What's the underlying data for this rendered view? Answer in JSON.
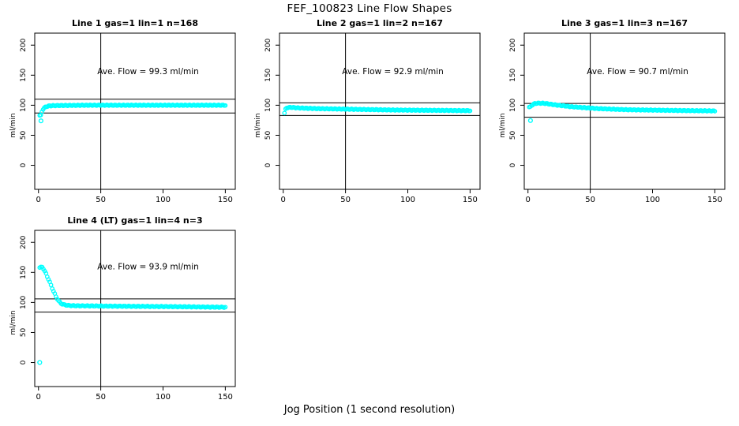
{
  "figure": {
    "title": "FEF_100823  Line Flow Shapes",
    "xlabel": "Jog Position (1 second resolution)",
    "point_color": "#00ffff",
    "line_color": "#000000",
    "background": "#ffffff"
  },
  "chart_data": [
    {
      "type": "scatter",
      "title": "Line 1 gas=1 lin=1 n=168",
      "line": 1,
      "gas": 1,
      "lin": 1,
      "n": 168,
      "annotation": "Ave. Flow =  99.3  ml/min",
      "ave_flow_ml_min": 99.3,
      "ylabel": "ml/min",
      "xticks": [
        0,
        50,
        100,
        150
      ],
      "yticks": [
        0,
        50,
        100,
        150,
        200
      ],
      "xlim": [
        -3,
        158
      ],
      "ylim": [
        -40,
        220
      ],
      "vline_x": 50,
      "hlines": [
        110,
        87
      ],
      "annotation_pos": [
        88,
        152
      ],
      "num_points": 167,
      "curve_keypoints": [
        [
          2,
          83
        ],
        [
          3,
          91
        ],
        [
          4,
          94.5
        ],
        [
          6,
          97.5
        ],
        [
          9,
          99
        ],
        [
          15,
          99.5
        ],
        [
          40,
          100
        ],
        [
          100,
          100
        ],
        [
          150,
          100
        ]
      ],
      "outliers": [
        [
          2,
          74
        ]
      ]
    },
    {
      "type": "scatter",
      "title": "Line 2 gas=1 lin=2 n=167",
      "line": 2,
      "gas": 1,
      "lin": 2,
      "n": 167,
      "annotation": "Ave. Flow =  92.9  ml/min",
      "ave_flow_ml_min": 92.9,
      "ylabel": "ml/min",
      "xticks": [
        0,
        50,
        100,
        150
      ],
      "yticks": [
        0,
        50,
        100,
        150,
        200
      ],
      "xlim": [
        -3,
        158
      ],
      "ylim": [
        -40,
        220
      ],
      "vline_x": 50,
      "hlines": [
        104,
        83
      ],
      "annotation_pos": [
        88,
        152
      ],
      "num_points": 167,
      "curve_keypoints": [
        [
          1,
          87
        ],
        [
          2,
          94
        ],
        [
          3,
          96
        ],
        [
          6,
          96.5
        ],
        [
          12,
          95.5
        ],
        [
          25,
          94.5
        ],
        [
          50,
          93.5
        ],
        [
          90,
          92
        ],
        [
          150,
          91
        ]
      ],
      "outliers": []
    },
    {
      "type": "scatter",
      "title": "Line 3 gas=1 lin=3 n=167",
      "line": 3,
      "gas": 1,
      "lin": 3,
      "n": 167,
      "annotation": "Ave. Flow =  90.7  ml/min",
      "ave_flow_ml_min": 90.7,
      "ylabel": "ml/min",
      "xticks": [
        0,
        50,
        100,
        150
      ],
      "yticks": [
        0,
        50,
        100,
        150,
        200
      ],
      "xlim": [
        -3,
        158
      ],
      "ylim": [
        -40,
        220
      ],
      "vline_x": 50,
      "hlines": [
        103,
        80
      ],
      "annotation_pos": [
        88,
        152
      ],
      "num_points": 166,
      "curve_keypoints": [
        [
          2,
          97
        ],
        [
          3,
          100
        ],
        [
          5,
          102.5
        ],
        [
          8,
          103.5
        ],
        [
          14,
          103
        ],
        [
          22,
          100.5
        ],
        [
          35,
          97.5
        ],
        [
          55,
          94.5
        ],
        [
          80,
          92.5
        ],
        [
          110,
          91.5
        ],
        [
          150,
          90.5
        ]
      ],
      "outliers": [
        [
          2,
          74.5
        ]
      ]
    },
    {
      "type": "scatter",
      "title": "Line 4 (LT) gas=1 lin=4 n=3",
      "line": 4,
      "line_note": "LT",
      "gas": 1,
      "lin": 4,
      "n": 3,
      "annotation": "Ave. Flow =  93.9  ml/min",
      "ave_flow_ml_min": 93.9,
      "ylabel": "ml/min",
      "xticks": [
        0,
        50,
        100,
        150
      ],
      "yticks": [
        0,
        50,
        100,
        150,
        200
      ],
      "xlim": [
        -3,
        158
      ],
      "ylim": [
        -40,
        220
      ],
      "vline_x": 50,
      "hlines": [
        106,
        84
      ],
      "annotation_pos": [
        88,
        155
      ],
      "num_points": 149,
      "curve_keypoints": [
        [
          1,
          158
        ],
        [
          3,
          159
        ],
        [
          4,
          156
        ],
        [
          6,
          148
        ],
        [
          8,
          139
        ],
        [
          10,
          129
        ],
        [
          12,
          119
        ],
        [
          14,
          110
        ],
        [
          16,
          103
        ],
        [
          18,
          98.5
        ],
        [
          20,
          96.5
        ],
        [
          24,
          95
        ],
        [
          30,
          94.5
        ],
        [
          50,
          94
        ],
        [
          80,
          93.5
        ],
        [
          110,
          93
        ],
        [
          150,
          92
        ]
      ],
      "outliers": [
        [
          1,
          0
        ]
      ]
    }
  ]
}
